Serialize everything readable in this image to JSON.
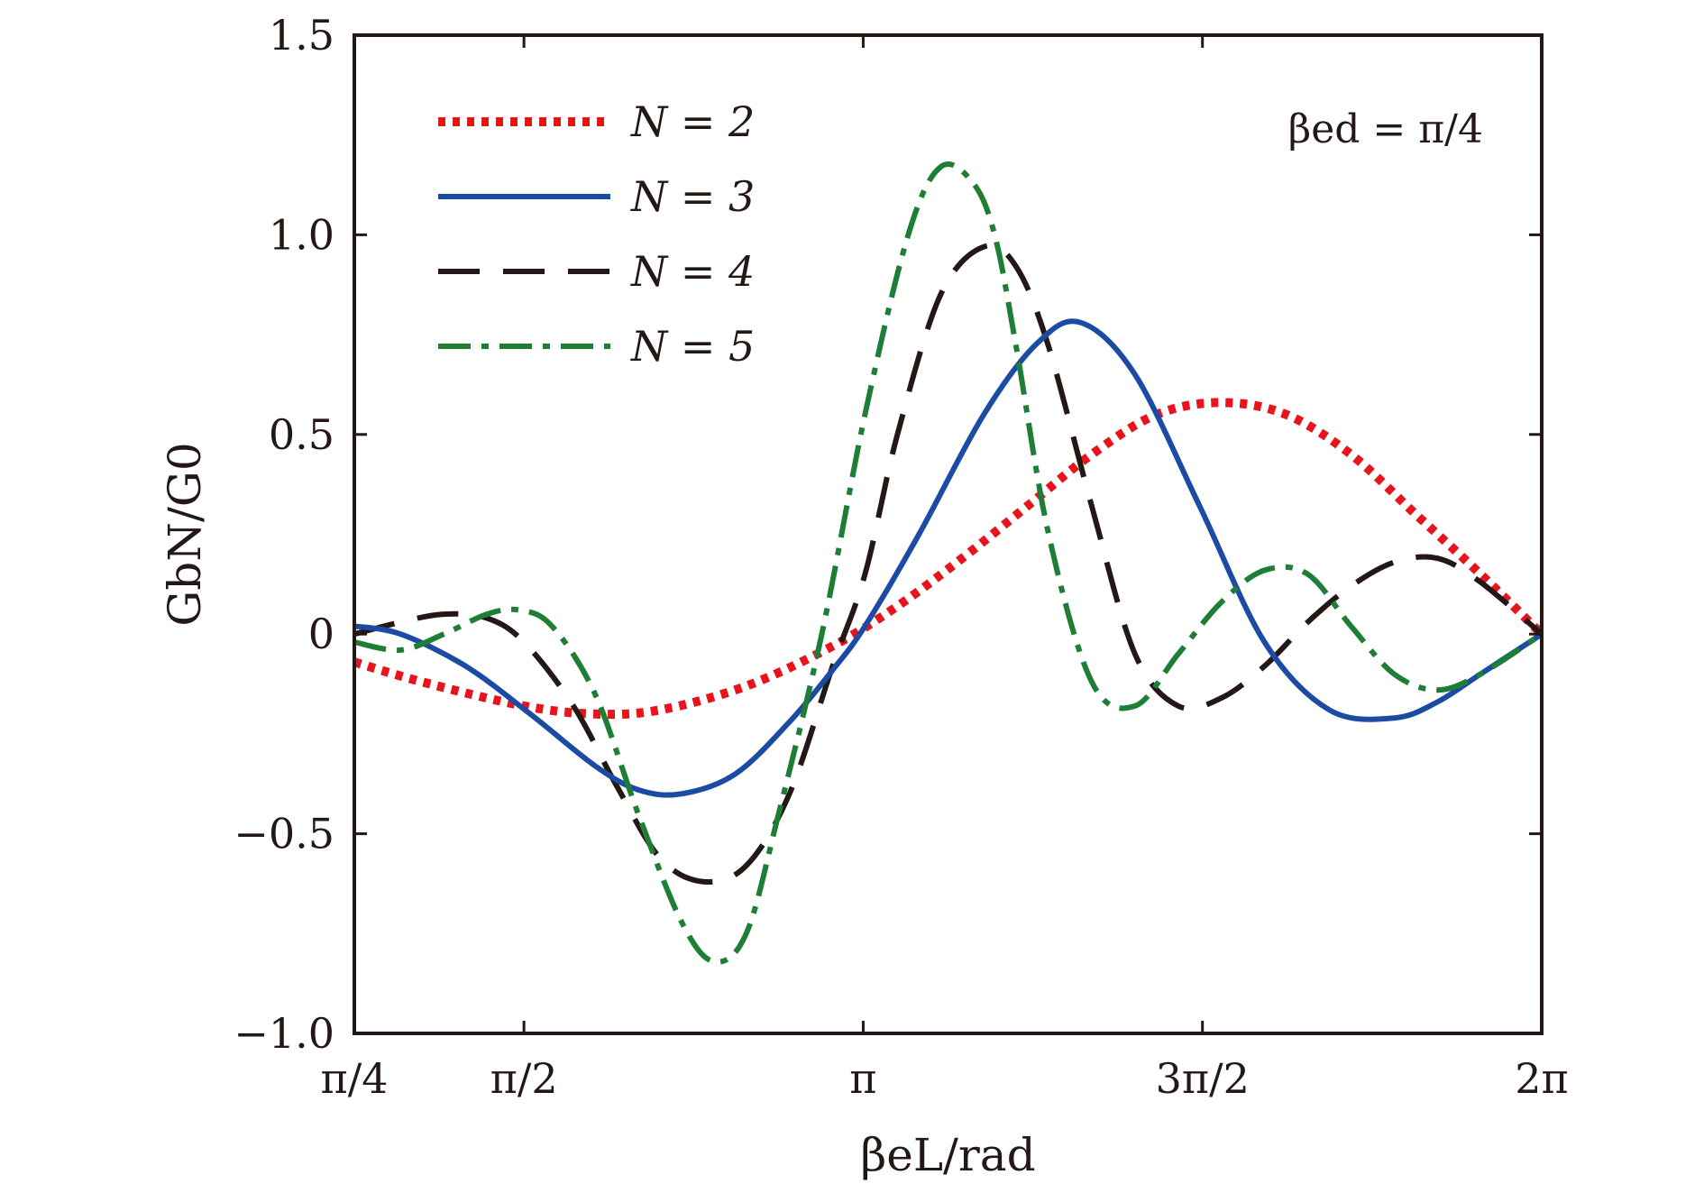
{
  "chart_data": {
    "type": "line",
    "xlabel": "βeL/rad",
    "ylabel": "GbN/G0",
    "annotation": "βed = π/4",
    "xlim": [
      0.7853981634,
      6.2831853072
    ],
    "ylim": [
      -1.0,
      1.5
    ],
    "x_tick_values": [
      0.7853981634,
      1.5707963268,
      3.1415926536,
      4.7123889804,
      6.2831853072
    ],
    "x_tick_labels": [
      "π/4",
      "π/2",
      "π",
      "3π/2",
      "2π"
    ],
    "y_tick_values": [
      1.5,
      1.0,
      0.5,
      0,
      -0.5,
      -1.0
    ],
    "y_tick_labels": [
      "1.5",
      "1.0",
      "0.5",
      "0",
      "−0.5",
      "−1.0"
    ],
    "grid": false,
    "legend_position": "top-left",
    "colors": {
      "axis": "#231815",
      "n2": "#e8141c",
      "n3": "#1b4ba3",
      "n4": "#231815",
      "n5": "#1f7e36"
    },
    "series": [
      {
        "name": "N = 2",
        "style": "dotted",
        "color": "#e8141c",
        "x": [
          0.785,
          1.1,
          1.571,
          1.9,
          2.2,
          2.6,
          3.0,
          3.3,
          3.6,
          3.9,
          4.2,
          4.5,
          4.8,
          5.1,
          5.4,
          5.7,
          6.0,
          6.283
        ],
        "y": [
          -0.07,
          -0.12,
          -0.18,
          -0.2,
          -0.19,
          -0.13,
          -0.03,
          0.07,
          0.19,
          0.32,
          0.45,
          0.55,
          0.58,
          0.55,
          0.45,
          0.3,
          0.15,
          0.0
        ]
      },
      {
        "name": "N = 3",
        "style": "solid",
        "color": "#1b4ba3",
        "x": [
          0.785,
          1.0,
          1.3,
          1.6,
          1.9,
          2.1,
          2.3,
          2.55,
          2.8,
          3.0,
          3.15,
          3.4,
          3.7,
          3.95,
          4.15,
          4.4,
          4.7,
          5.0,
          5.3,
          5.6,
          5.8,
          6.0,
          6.283
        ],
        "y": [
          0.02,
          0.0,
          -0.08,
          -0.2,
          -0.33,
          -0.39,
          -0.4,
          -0.35,
          -0.22,
          -0.09,
          0.02,
          0.25,
          0.55,
          0.73,
          0.78,
          0.65,
          0.32,
          -0.02,
          -0.19,
          -0.21,
          -0.17,
          -0.1,
          0.0
        ]
      },
      {
        "name": "N = 4",
        "style": "dashed",
        "color": "#231815",
        "x": [
          0.785,
          1.0,
          1.2,
          1.4,
          1.571,
          1.8,
          2.0,
          2.2,
          2.4,
          2.6,
          2.8,
          3.0,
          3.15,
          3.3,
          3.5,
          3.7,
          3.85,
          4.0,
          4.2,
          4.4,
          4.6,
          4.8,
          5.0,
          5.2,
          5.4,
          5.6,
          5.8,
          6.0,
          6.283
        ],
        "y": [
          0.0,
          0.03,
          0.05,
          0.04,
          -0.02,
          -0.18,
          -0.38,
          -0.56,
          -0.62,
          -0.58,
          -0.4,
          -0.08,
          0.15,
          0.5,
          0.85,
          0.97,
          0.92,
          0.72,
          0.32,
          -0.05,
          -0.18,
          -0.16,
          -0.08,
          0.03,
          0.12,
          0.18,
          0.19,
          0.13,
          0.0
        ]
      },
      {
        "name": "N = 5",
        "style": "dash-dot",
        "color": "#1f7e36",
        "x": [
          0.785,
          1.0,
          1.2,
          1.4,
          1.55,
          1.7,
          1.9,
          2.1,
          2.3,
          2.45,
          2.6,
          2.75,
          2.95,
          3.15,
          3.35,
          3.5,
          3.65,
          3.75,
          3.85,
          4.0,
          4.2,
          4.4,
          4.6,
          4.8,
          5.0,
          5.2,
          5.4,
          5.6,
          5.8,
          6.0,
          6.283
        ],
        "y": [
          -0.02,
          -0.04,
          0.0,
          0.05,
          0.06,
          0.02,
          -0.15,
          -0.45,
          -0.72,
          -0.82,
          -0.75,
          -0.45,
          0.0,
          0.55,
          1.0,
          1.17,
          1.13,
          1.0,
          0.72,
          0.25,
          -0.12,
          -0.18,
          -0.05,
          0.08,
          0.16,
          0.15,
          0.02,
          -0.1,
          -0.14,
          -0.1,
          0.0
        ]
      }
    ]
  }
}
